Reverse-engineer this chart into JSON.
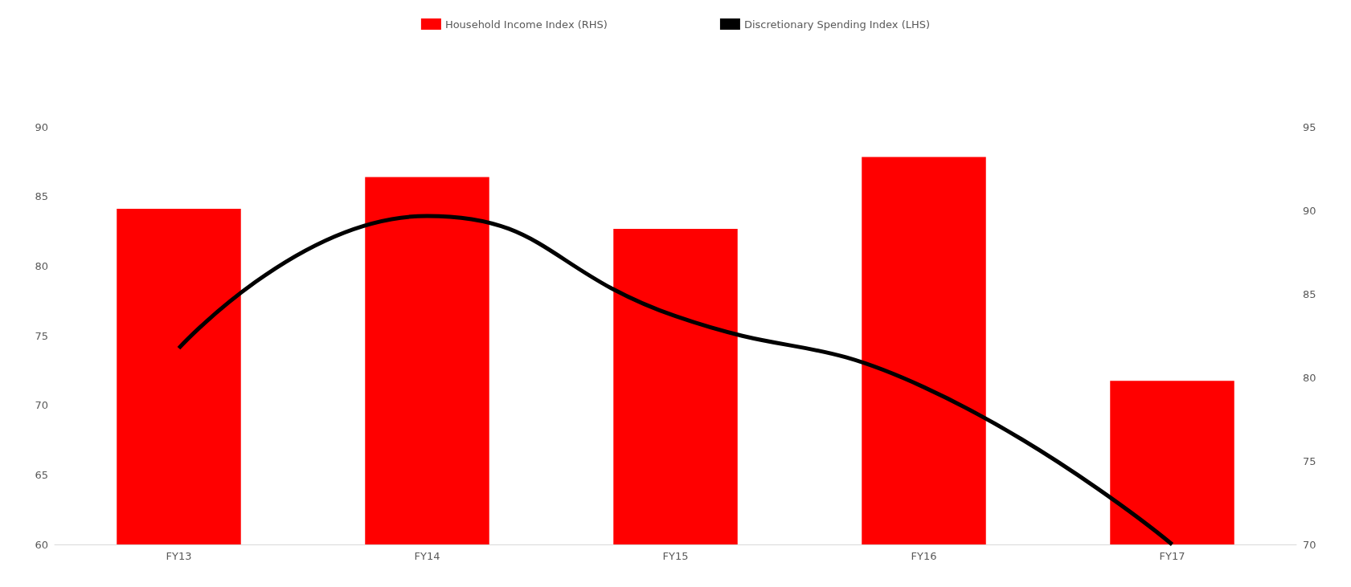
{
  "chart_data": {
    "type": "bar",
    "categories": [
      "FY13",
      "FY14",
      "FY15",
      "FY16",
      "FY17"
    ],
    "series": [
      {
        "name": "Household Income Index (RHS)",
        "axis": "y2",
        "color": "#ff0000",
        "values": [
          90.1,
          92,
          88.9,
          93.2,
          79.8
        ]
      },
      {
        "name": "Discretionary Spending Index (LHS)",
        "type": "line",
        "color": "#000000",
        "values": [
          74.1,
          83.6,
          76.4,
          71.3,
          60
        ]
      }
    ],
    "ylim": [
      60,
      90
    ],
    "yticks": [
      60,
      65,
      70,
      75,
      80,
      85,
      90
    ],
    "y2lim": [
      70,
      95
    ],
    "y2ticks": [
      70,
      75,
      80,
      85,
      90,
      95
    ],
    "legend": "top",
    "grid": false,
    "marker": "none"
  }
}
